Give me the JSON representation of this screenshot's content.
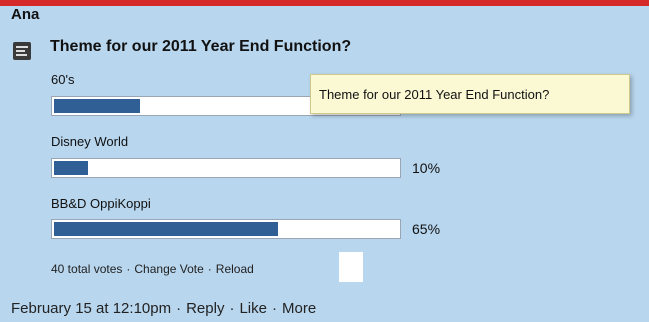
{
  "post": {
    "author": "Ana",
    "poll_title": "Theme for our 2011 Year End Function?",
    "tooltip": "Theme for our 2011 Year End Function?",
    "options": [
      {
        "label": "60's",
        "percent_value": 25,
        "percent_text": ""
      },
      {
        "label": "Disney World",
        "percent_value": 10,
        "percent_text": "10%"
      },
      {
        "label": "BB&D OppiKoppi",
        "percent_value": 65,
        "percent_text": "65%"
      }
    ],
    "footer": {
      "total_votes": "40 total votes",
      "change_vote": "Change Vote",
      "reload": "Reload",
      "separator": "·"
    },
    "meta": {
      "timestamp": "February 15 at 12:10pm",
      "reply": "Reply",
      "like": "Like",
      "more": "More",
      "separator": "·"
    }
  },
  "colors": {
    "background": "#b8d6ee",
    "bar_fill": "#2f5f94",
    "top_bar": "#d62a2a"
  }
}
